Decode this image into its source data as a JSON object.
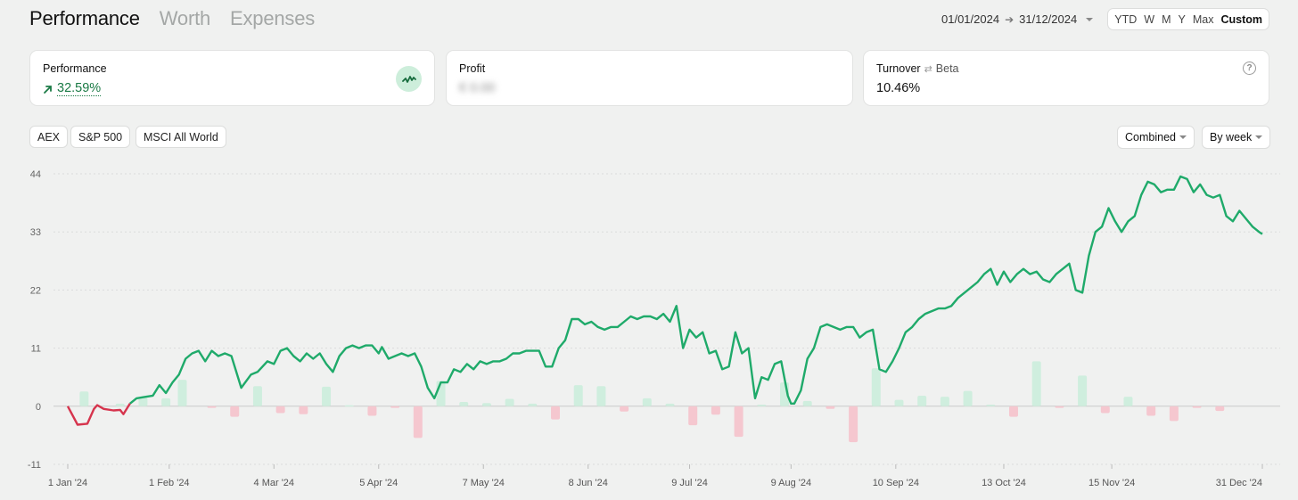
{
  "nav": {
    "tabs": [
      {
        "label": "Performance",
        "active": true
      },
      {
        "label": "Worth",
        "active": false
      },
      {
        "label": "Expenses",
        "active": false
      }
    ]
  },
  "date_range": {
    "start": "01/01/2024",
    "end": "31/12/2024"
  },
  "period": {
    "options": [
      "YTD",
      "W",
      "M",
      "Y",
      "Max",
      "Custom"
    ],
    "selected": "Custom"
  },
  "cards": {
    "performance": {
      "title": "Performance",
      "value": "32.59%"
    },
    "profit": {
      "title": "Profit",
      "value": "€ 0.00"
    },
    "turnover": {
      "title": "Turnover",
      "alt": "Beta",
      "value": "10.46%"
    }
  },
  "benchmarks": [
    "AEX",
    "S&P 500",
    "MSCI All World"
  ],
  "dropdowns": {
    "mode": "Combined",
    "interval": "By week"
  },
  "colors": {
    "positive": "#1faa6a",
    "negative": "#d6344d",
    "bar_pos": "#cfeede",
    "bar_neg": "#f5c7cf",
    "text_positive": "#1a7a45"
  },
  "chart_data": {
    "type": "line",
    "y_ticks": [
      44,
      33,
      22,
      11,
      0,
      -11
    ],
    "ylim": [
      -11,
      44
    ],
    "x_tick_labels": [
      "1 Jan '24",
      "1 Feb '24",
      "4 Mar '24",
      "5 Apr '24",
      "7 May '24",
      "8 Jun '24",
      "9 Jul '24",
      "9 Aug '24",
      "10 Sep '24",
      "13 Oct '24",
      "15 Nov '24",
      "31 Dec '24"
    ],
    "x_tick_days": [
      0,
      31,
      63,
      95,
      127,
      159,
      190,
      221,
      253,
      286,
      319,
      365
    ],
    "series": [
      {
        "x": [
          0,
          3,
          6,
          8,
          9,
          11,
          14,
          16,
          17,
          19,
          21,
          23,
          26,
          28,
          30,
          32,
          34,
          36,
          38,
          40,
          42,
          44,
          46,
          48,
          50,
          53,
          56,
          58,
          61,
          63,
          65,
          67,
          69,
          71,
          73,
          75,
          77,
          79,
          81,
          83,
          85,
          87,
          89,
          91,
          93,
          95,
          96,
          98,
          100,
          102,
          104,
          106,
          108,
          110,
          112,
          114,
          116,
          118,
          120,
          122,
          124,
          126,
          128,
          130,
          132,
          134,
          136,
          138,
          140,
          142,
          144,
          146,
          148,
          150,
          152,
          154,
          156,
          158,
          160,
          162,
          164,
          166,
          168,
          170,
          172,
          174,
          176,
          178,
          180,
          182,
          184,
          186,
          188,
          190,
          192,
          194,
          196,
          198,
          200,
          202,
          204,
          206,
          208,
          210,
          212,
          214,
          216,
          218,
          220,
          221,
          222,
          224,
          226,
          228,
          230,
          232,
          234,
          236,
          238,
          240,
          242,
          244,
          246,
          248,
          250,
          252,
          254,
          256,
          258,
          260,
          262,
          264,
          266,
          268,
          270,
          272,
          274,
          276,
          278,
          280,
          282,
          284,
          286,
          288,
          290,
          292,
          294,
          296,
          298,
          300,
          302,
          304,
          306,
          308,
          310,
          312,
          314,
          316,
          318,
          320,
          322,
          324,
          326,
          328,
          330,
          332,
          334,
          336,
          338,
          340,
          342,
          344,
          346,
          348,
          350,
          352,
          354,
          356,
          358,
          360,
          362,
          364,
          365
        ],
        "y": [
          0,
          -3.5,
          -3.3,
          -0.5,
          0.2,
          -0.5,
          -0.8,
          -0.7,
          -1.5,
          0.5,
          1.5,
          1.7,
          2,
          4,
          2.5,
          4.5,
          6,
          9,
          10,
          10.5,
          8.5,
          10.5,
          9.5,
          10,
          9.5,
          3.5,
          6,
          6.5,
          8.5,
          8,
          10.5,
          11,
          9.5,
          8.5,
          10,
          9,
          10,
          8,
          6.5,
          9.5,
          11,
          11.5,
          11,
          11.5,
          11.5,
          10,
          11.2,
          9,
          9.5,
          10,
          9.5,
          10,
          7.5,
          3.5,
          1.5,
          4.5,
          4.5,
          7,
          6.5,
          8,
          7,
          8.5,
          8,
          8.5,
          8.5,
          9,
          10,
          10,
          10.5,
          10.5,
          10.5,
          7.5,
          7.5,
          11,
          12.5,
          16.5,
          16.5,
          15.5,
          16,
          15,
          14.5,
          15,
          15,
          16,
          17,
          16.5,
          17,
          17,
          16.5,
          17.5,
          16,
          19,
          11,
          14.5,
          13,
          14,
          10,
          10.5,
          7,
          7.5,
          14,
          10,
          11,
          1.5,
          5.5,
          5,
          8,
          8.5,
          2,
          0.5,
          0.5,
          3,
          9,
          11,
          15,
          15.5,
          15,
          14.5,
          15,
          15,
          13,
          14,
          14.5,
          7,
          6.5,
          8.5,
          11,
          14,
          15,
          16.5,
          17.5,
          18,
          18.5,
          18.5,
          19,
          20.5,
          21.5,
          22.5,
          23.5,
          25,
          26,
          23,
          25.5,
          23.5,
          25,
          26,
          25,
          25.5,
          24,
          23.5,
          25,
          26,
          27,
          22,
          21.5,
          28.5,
          33,
          34,
          37.5,
          35,
          33,
          35,
          36,
          40,
          42.5,
          42,
          40.5,
          41,
          41,
          43.5,
          43,
          40.5,
          42,
          40,
          39.5,
          40,
          36,
          35,
          37,
          35.5,
          34,
          33,
          32.6
        ]
      }
    ],
    "weekly_bars": [
      {
        "x": 5,
        "y": 2.8
      },
      {
        "x": 16,
        "y": 0.5
      },
      {
        "x": 23,
        "y": 1.6
      },
      {
        "x": 30,
        "y": 1.5
      },
      {
        "x": 35,
        "y": 5
      },
      {
        "x": 44,
        "y": -0.3
      },
      {
        "x": 51,
        "y": -2
      },
      {
        "x": 58,
        "y": 3.8
      },
      {
        "x": 65,
        "y": -1.3
      },
      {
        "x": 72,
        "y": -1.5
      },
      {
        "x": 79,
        "y": 3.7
      },
      {
        "x": 86,
        "y": 0.2
      },
      {
        "x": 93,
        "y": -1.8
      },
      {
        "x": 100,
        "y": -0.3
      },
      {
        "x": 107,
        "y": -6
      },
      {
        "x": 114,
        "y": 4.8
      },
      {
        "x": 121,
        "y": 0.8
      },
      {
        "x": 128,
        "y": 0.6
      },
      {
        "x": 135,
        "y": 1.4
      },
      {
        "x": 142,
        "y": 0.5
      },
      {
        "x": 149,
        "y": -2.5
      },
      {
        "x": 156,
        "y": 4
      },
      {
        "x": 163,
        "y": 3.8
      },
      {
        "x": 170,
        "y": -1
      },
      {
        "x": 177,
        "y": 1.5
      },
      {
        "x": 184,
        "y": 0.5
      },
      {
        "x": 191,
        "y": -3.6
      },
      {
        "x": 198,
        "y": -1.6
      },
      {
        "x": 205,
        "y": -5.8
      },
      {
        "x": 212,
        "y": 0.3
      },
      {
        "x": 219,
        "y": 4.5
      },
      {
        "x": 226,
        "y": 1
      },
      {
        "x": 233,
        "y": -0.5
      },
      {
        "x": 240,
        "y": -6.8
      },
      {
        "x": 247,
        "y": 7.2
      },
      {
        "x": 254,
        "y": 1.2
      },
      {
        "x": 261,
        "y": 2
      },
      {
        "x": 268,
        "y": 1.8
      },
      {
        "x": 275,
        "y": 2.9
      },
      {
        "x": 282,
        "y": 0.3
      },
      {
        "x": 289,
        "y": -2
      },
      {
        "x": 296,
        "y": 8.5
      },
      {
        "x": 303,
        "y": -0.3
      },
      {
        "x": 310,
        "y": 5.8
      },
      {
        "x": 317,
        "y": -1.3
      },
      {
        "x": 324,
        "y": 1.8
      },
      {
        "x": 331,
        "y": -1.8
      },
      {
        "x": 338,
        "y": -2.8
      },
      {
        "x": 345,
        "y": -0.3
      },
      {
        "x": 352,
        "y": -0.9
      }
    ]
  }
}
